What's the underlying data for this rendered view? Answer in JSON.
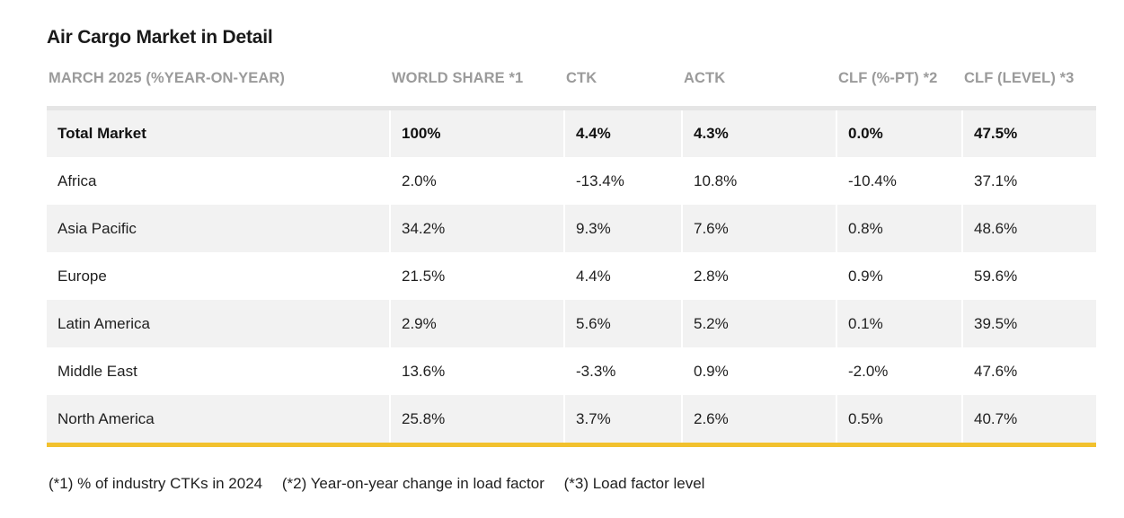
{
  "title": "Air Cargo Market in Detail",
  "columns": [
    "MARCH 2025 (%YEAR-ON-YEAR)",
    "WORLD SHARE *1",
    "CTK",
    "ACTK",
    "CLF (%-PT) *2",
    "CLF (LEVEL) *3"
  ],
  "rows": [
    {
      "region": "Total Market",
      "world_share": "100%",
      "ctk": "4.4%",
      "actk": "4.3%",
      "clf_pt": "0.0%",
      "clf_level": "47.5%"
    },
    {
      "region": "Africa",
      "world_share": "2.0%",
      "ctk": "-13.4%",
      "actk": "10.8%",
      "clf_pt": "-10.4%",
      "clf_level": "37.1%"
    },
    {
      "region": "Asia Pacific",
      "world_share": "34.2%",
      "ctk": "9.3%",
      "actk": "7.6%",
      "clf_pt": "0.8%",
      "clf_level": "48.6%"
    },
    {
      "region": "Europe",
      "world_share": "21.5%",
      "ctk": "4.4%",
      "actk": "2.8%",
      "clf_pt": "0.9%",
      "clf_level": "59.6%"
    },
    {
      "region": "Latin America",
      "world_share": "2.9%",
      "ctk": "5.6%",
      "actk": "5.2%",
      "clf_pt": "0.1%",
      "clf_level": "39.5%"
    },
    {
      "region": "Middle East",
      "world_share": "13.6%",
      "ctk": "-3.3%",
      "actk": "0.9%",
      "clf_pt": "-2.0%",
      "clf_level": "47.6%"
    },
    {
      "region": "North America",
      "world_share": "25.8%",
      "ctk": "3.7%",
      "actk": "2.6%",
      "clf_pt": "0.5%",
      "clf_level": "40.7%"
    }
  ],
  "footnotes": [
    "(*1) % of industry CTKs in 2024",
    "(*2) Year-on-year change in load factor",
    "(*3) Load factor level"
  ],
  "colors": {
    "header_text": "#9b9b9b",
    "row_shade": "#f2f2f2",
    "top_rule": "#e5e5e5",
    "bottom_rule": "#f2c12e"
  }
}
